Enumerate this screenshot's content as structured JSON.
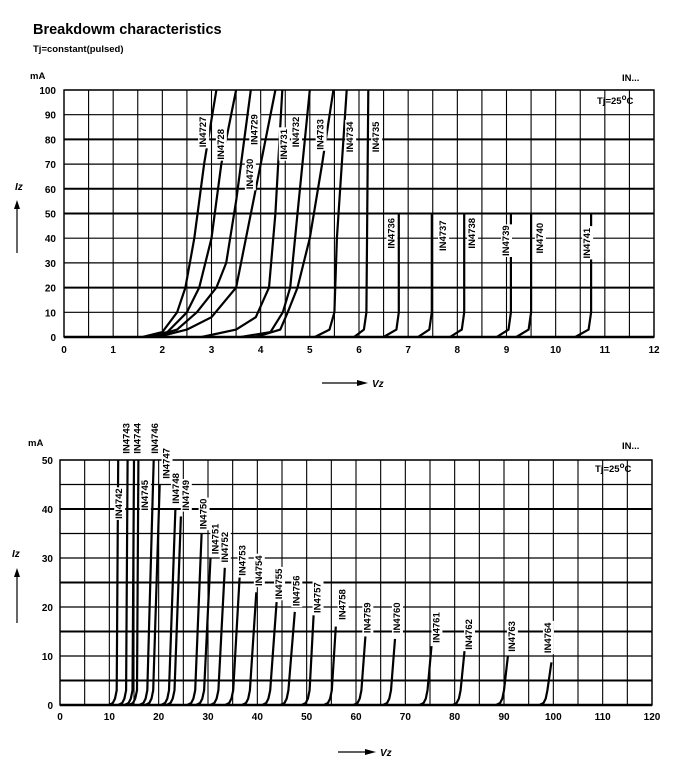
{
  "title": "Breakdowm characteristics",
  "subtitle": "Tj=constant(pulsed)",
  "colors": {
    "line": "#000000",
    "grid": "#000000",
    "background": "#ffffff"
  },
  "chart_data": [
    {
      "type": "line",
      "title": "",
      "ylabel": "Iz",
      "yunit": "mA",
      "xlabel": "Vz",
      "series_tag": "IN...",
      "annotation": {
        "text": "Tj=25",
        "sup": "o",
        "unit": "C"
      },
      "xlim": [
        0,
        12
      ],
      "ylim": [
        0,
        100
      ],
      "xticks": [
        0,
        1,
        2,
        3,
        4,
        5,
        6,
        7,
        8,
        9,
        10,
        11,
        12
      ],
      "yticks": [
        0,
        10,
        20,
        30,
        40,
        50,
        60,
        70,
        80,
        90,
        100
      ],
      "xgrid_step": 0.5,
      "ygrid_step": 10,
      "grid": true,
      "series": [
        {
          "name": "IN4727",
          "points": [
            [
              1.6,
              0
            ],
            [
              2.0,
              2
            ],
            [
              2.3,
              10
            ],
            [
              2.47,
              20
            ],
            [
              2.65,
              40
            ],
            [
              2.85,
              70
            ],
            [
              3.1,
              100
            ]
          ],
          "label_at": [
            2.82,
            83
          ]
        },
        {
          "name": "IN4728",
          "points": [
            [
              1.7,
              0
            ],
            [
              2.1,
              2
            ],
            [
              2.5,
              10
            ],
            [
              2.75,
              20
            ],
            [
              3.0,
              40
            ],
            [
              3.2,
              70
            ],
            [
              3.5,
              100
            ]
          ],
          "label_at": [
            3.18,
            78
          ]
        },
        {
          "name": "IN4729",
          "points": [
            [
              1.8,
              0
            ],
            [
              2.3,
              3
            ],
            [
              2.7,
              10
            ],
            [
              3.1,
              20
            ],
            [
              3.3,
              30
            ],
            [
              3.5,
              55
            ],
            [
              3.8,
              100
            ]
          ],
          "label_at": [
            3.86,
            84
          ]
        },
        {
          "name": "IN4730",
          "points": [
            [
              1.9,
              0
            ],
            [
              2.5,
              3
            ],
            [
              3.0,
              8
            ],
            [
              3.5,
              20
            ],
            [
              3.9,
              60
            ],
            [
              4.3,
              100
            ]
          ],
          "label_at": [
            3.77,
            66
          ]
        },
        {
          "name": "IN4731",
          "points": [
            [
              2.8,
              0
            ],
            [
              3.5,
              3
            ],
            [
              3.9,
              8
            ],
            [
              4.17,
              20
            ],
            [
              4.3,
              50
            ],
            [
              4.44,
              100
            ]
          ],
          "label_at": [
            4.46,
            78
          ]
        },
        {
          "name": "IN4732",
          "points": [
            [
              3.6,
              0
            ],
            [
              4.2,
              2
            ],
            [
              4.45,
              10
            ],
            [
              4.6,
              20
            ],
            [
              4.75,
              50
            ],
            [
              5.0,
              100
            ]
          ],
          "label_at": [
            4.71,
            83
          ]
        },
        {
          "name": "IN4733",
          "points": [
            [
              3.9,
              0
            ],
            [
              4.4,
              3
            ],
            [
              4.55,
              10
            ],
            [
              4.75,
              20
            ],
            [
              5.0,
              40
            ],
            [
              5.25,
              70
            ],
            [
              5.48,
              100
            ]
          ],
          "label_at": [
            5.21,
            82
          ]
        },
        {
          "name": "IN4734",
          "points": [
            [
              5.1,
              0
            ],
            [
              5.4,
              3
            ],
            [
              5.5,
              10
            ],
            [
              5.55,
              40
            ],
            [
              5.65,
              70
            ],
            [
              5.75,
              100
            ]
          ],
          "label_at": [
            5.81,
            81
          ]
        },
        {
          "name": "IN4735",
          "points": [
            [
              5.9,
              0
            ],
            [
              6.1,
              3
            ],
            [
              6.15,
              10
            ],
            [
              6.19,
              100
            ]
          ],
          "label_at": [
            6.34,
            81
          ]
        },
        {
          "name": "IN4736",
          "points": [
            [
              6.5,
              0
            ],
            [
              6.76,
              3
            ],
            [
              6.81,
              10
            ],
            [
              6.81,
              50
            ]
          ],
          "label_at": [
            6.65,
            42
          ]
        },
        {
          "name": "IN4737",
          "points": [
            [
              7.2,
              0
            ],
            [
              7.43,
              3
            ],
            [
              7.48,
              10
            ],
            [
              7.48,
              50
            ]
          ],
          "label_at": [
            7.7,
            41
          ]
        },
        {
          "name": "IN4738",
          "points": [
            [
              7.85,
              0
            ],
            [
              8.09,
              3
            ],
            [
              8.14,
              10
            ],
            [
              8.14,
              50
            ]
          ],
          "label_at": [
            8.29,
            42
          ]
        },
        {
          "name": "IN4739",
          "points": [
            [
              8.8,
              0
            ],
            [
              9.04,
              3
            ],
            [
              9.09,
              10
            ],
            [
              9.09,
              50
            ]
          ],
          "label_at": [
            8.98,
            39
          ]
        },
        {
          "name": "IN4740",
          "points": [
            [
              9.2,
              0
            ],
            [
              9.45,
              3
            ],
            [
              9.5,
              10
            ],
            [
              9.5,
              50
            ]
          ],
          "label_at": [
            9.67,
            40
          ]
        },
        {
          "name": "IN4741",
          "points": [
            [
              10.4,
              0
            ],
            [
              10.67,
              3
            ],
            [
              10.72,
              10
            ],
            [
              10.72,
              50
            ]
          ],
          "label_at": [
            10.63,
            38
          ]
        }
      ]
    },
    {
      "type": "line",
      "title": "",
      "ylabel": "Iz",
      "yunit": "mA",
      "xlabel": "Vz",
      "series_tag": "IN...",
      "annotation": {
        "text": "Tj=25",
        "sup": "o",
        "unit": "C"
      },
      "xlim": [
        0,
        120
      ],
      "ylim": [
        0,
        50
      ],
      "xticks": [
        0,
        10,
        20,
        30,
        40,
        50,
        60,
        70,
        80,
        90,
        100,
        110,
        120
      ],
      "yticks": [
        0,
        10,
        20,
        30,
        40,
        50
      ],
      "xgrid_step": 5,
      "ygrid_step": 5,
      "grid": true,
      "series": [
        {
          "name": "IN4742",
          "vz": 11.8,
          "imax": 50,
          "label_at": [
            11.9,
            41.1
          ]
        },
        {
          "name": "IN4743",
          "vz": 13.7,
          "imax": 50,
          "label_at": [
            13.4,
            54.4
          ]
        },
        {
          "name": "IN4744",
          "vz": 15.0,
          "imax": 50,
          "label_at": [
            15.6,
            54.4
          ]
        },
        {
          "name": "IN4745",
          "vz": 15.9,
          "imax": 50,
          "label_at": [
            17.1,
            42.8
          ]
        },
        {
          "name": "IN4746",
          "vz": 19.0,
          "imax": 50,
          "label_at": [
            19.2,
            54.4
          ]
        },
        {
          "name": "IN4747",
          "vz": 20.2,
          "imax": 45,
          "label_at": [
            21.5,
            49.3
          ]
        },
        {
          "name": "IN4748",
          "vz": 23.4,
          "imax": 40,
          "label_at": [
            23.4,
            44.2
          ]
        },
        {
          "name": "IN4749",
          "vz": 24.5,
          "imax": 38.5,
          "label_at": [
            25.4,
            42.8
          ]
        },
        {
          "name": "IN4750",
          "vz": 28.7,
          "imax": 35,
          "label_at": [
            29.0,
            39
          ]
        },
        {
          "name": "IN4751",
          "vz": 30.5,
          "imax": 30,
          "label_at": [
            31.4,
            33.9
          ]
        },
        {
          "name": "IN4752",
          "vz": 33.4,
          "imax": 28,
          "label_at": [
            33.3,
            32.2
          ]
        },
        {
          "name": "IN4753",
          "vz": 36.4,
          "imax": 26,
          "label_at": [
            36.9,
            29.5
          ]
        },
        {
          "name": "IN4754",
          "vz": 39.8,
          "imax": 23,
          "label_at": [
            40.2,
            27.4
          ]
        },
        {
          "name": "IN4755",
          "vz": 43.9,
          "imax": 21,
          "label_at": [
            44.3,
            24.7
          ]
        },
        {
          "name": "IN4756",
          "vz": 47.6,
          "imax": 19,
          "label_at": [
            47.8,
            23.3
          ]
        },
        {
          "name": "IN4757",
          "vz": 51.4,
          "imax": 18.3,
          "label_at": [
            52.1,
            21.9
          ]
        },
        {
          "name": "IN4758",
          "vz": 55.9,
          "imax": 16,
          "label_at": [
            57.2,
            20.5
          ]
        },
        {
          "name": "IN4759",
          "vz": 61.9,
          "imax": 14,
          "label_at": [
            62.2,
            17.8
          ]
        },
        {
          "name": "IN4760",
          "vz": 67.9,
          "imax": 13.5,
          "label_at": [
            68.2,
            17.8
          ]
        },
        {
          "name": "IN4761",
          "vz": 75.3,
          "imax": 12,
          "label_at": [
            76.2,
            15.8
          ]
        },
        {
          "name": "IN4762",
          "vz": 82.0,
          "imax": 11,
          "label_at": [
            82.8,
            14.4
          ]
        },
        {
          "name": "IN4763",
          "vz": 90.8,
          "imax": 10,
          "label_at": [
            91.5,
            14
          ]
        },
        {
          "name": "IN4764",
          "vz": 99.6,
          "imax": 8.7,
          "label_at": [
            98.8,
            13.7
          ]
        }
      ]
    }
  ]
}
